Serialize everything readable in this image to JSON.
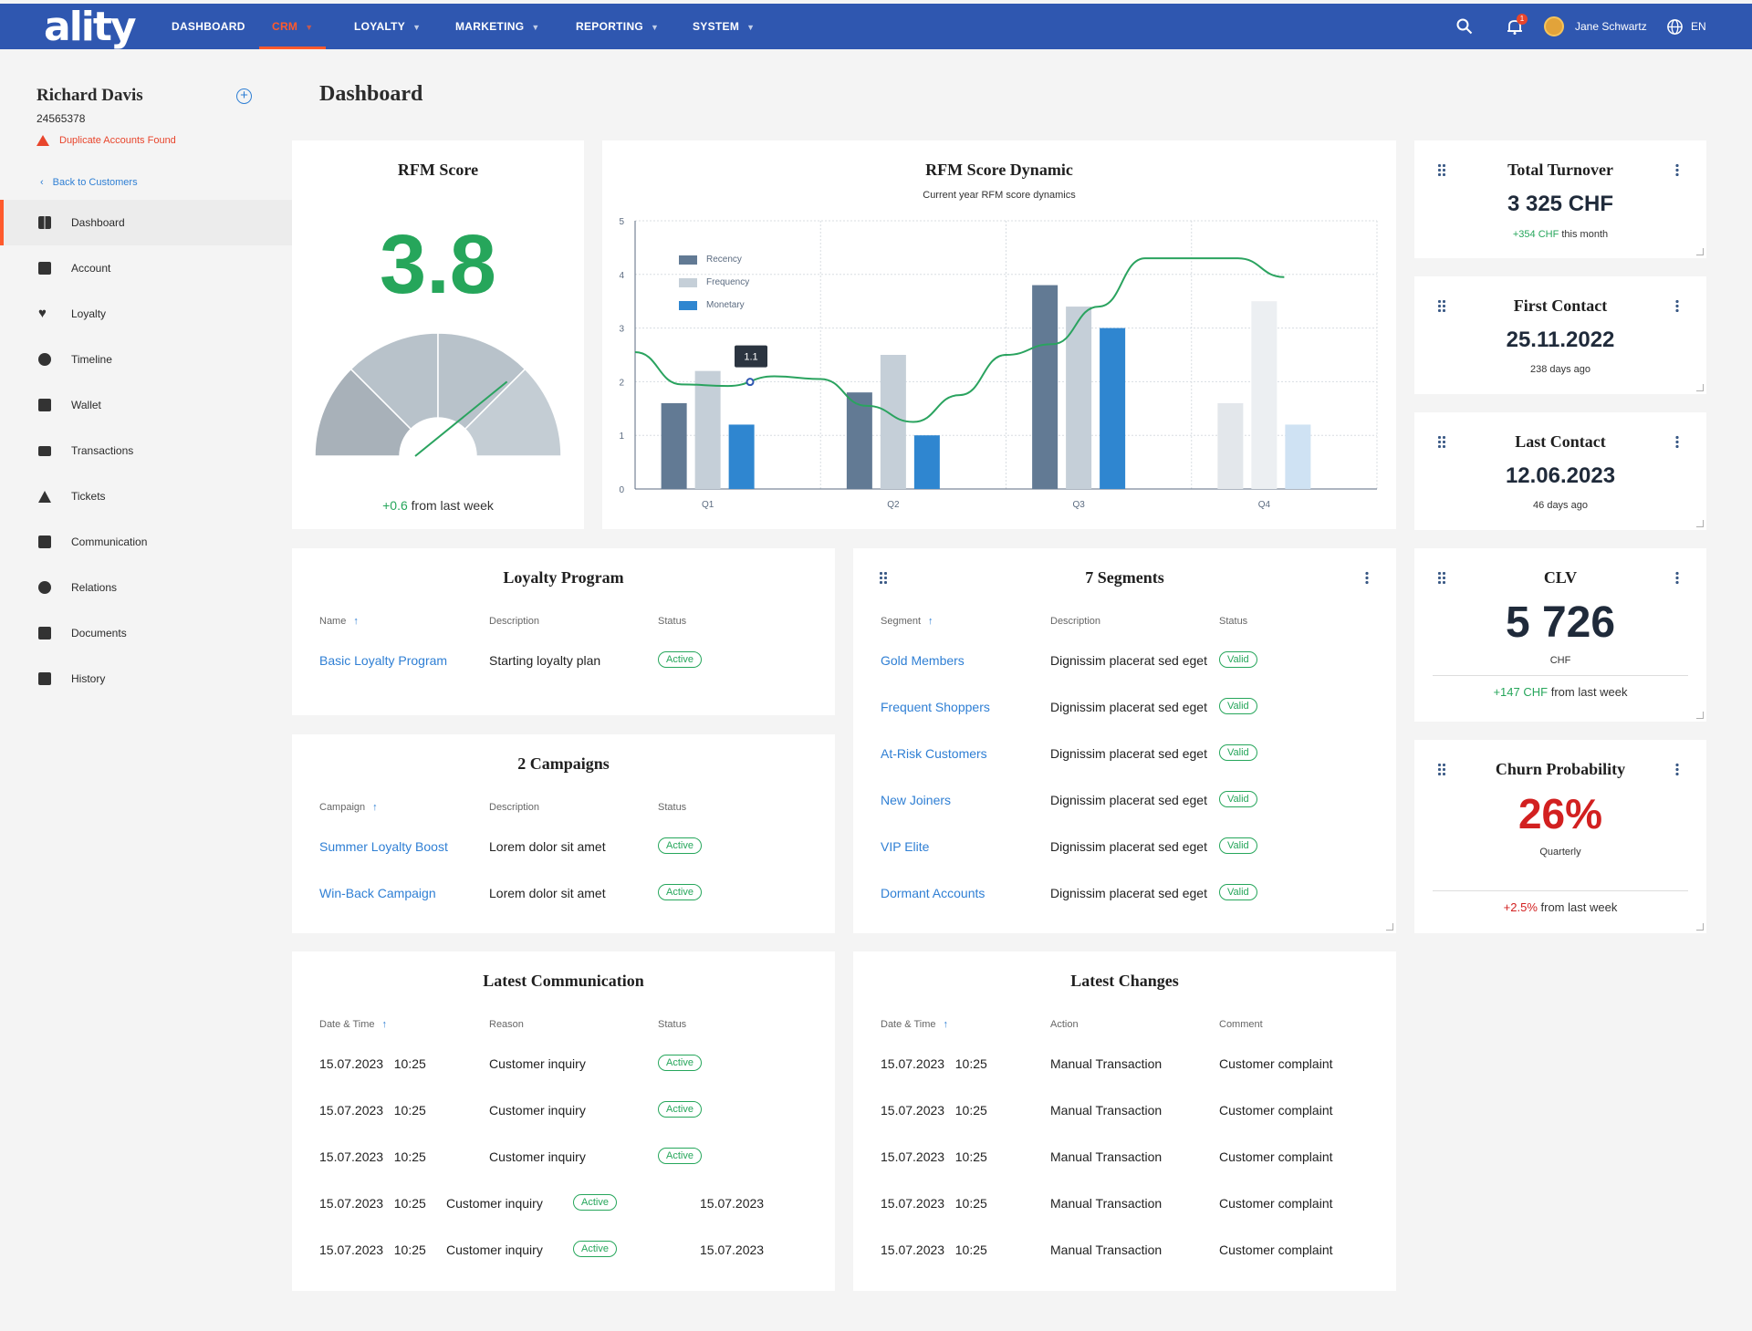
{
  "app": {
    "logo": "ality"
  },
  "nav": [
    {
      "label": "DASHBOARD",
      "has_menu": false,
      "active": false
    },
    {
      "label": "CRM",
      "has_menu": true,
      "active": true
    },
    {
      "label": "LOYALTY",
      "has_menu": true,
      "active": false
    },
    {
      "label": "MARKETING",
      "has_menu": true,
      "active": false
    },
    {
      "label": "REPORTING",
      "has_menu": true,
      "active": false
    },
    {
      "label": "SYSTEM",
      "has_menu": true,
      "active": false
    }
  ],
  "topbar": {
    "notification_count": "1",
    "user_name": "Jane Schwartz",
    "language": "EN"
  },
  "customer": {
    "name": "Richard Davis",
    "id": "24565378",
    "warning": "Duplicate Accounts Found",
    "back_label": "Back to Customers"
  },
  "sidebar_menu": [
    {
      "label": "Dashboard",
      "icon": "dashboard-icon",
      "active": true
    },
    {
      "label": "Account",
      "icon": "account-icon",
      "active": false
    },
    {
      "label": "Loyalty",
      "icon": "heart-icon",
      "active": false
    },
    {
      "label": "Timeline",
      "icon": "timeline-icon",
      "active": false
    },
    {
      "label": "Wallet",
      "icon": "wallet-icon",
      "active": false
    },
    {
      "label": "Transactions",
      "icon": "card-icon",
      "active": false
    },
    {
      "label": "Tickets",
      "icon": "ticket-icon",
      "active": false
    },
    {
      "label": "Communication",
      "icon": "chat-icon",
      "active": false
    },
    {
      "label": "Relations",
      "icon": "relations-icon",
      "active": false
    },
    {
      "label": "Documents",
      "icon": "document-icon",
      "active": false
    },
    {
      "label": "History",
      "icon": "history-icon",
      "active": false
    }
  ],
  "page": {
    "title": "Dashboard"
  },
  "rfm_score": {
    "title": "RFM Score",
    "value": "3.8",
    "gauge_fraction": 0.76,
    "delta": "+0.6",
    "delta_suffix": "from last week"
  },
  "rfm_dynamic": {
    "title": "RFM Score Dynamic",
    "subtitle": "Current year RFM score dynamics",
    "tooltip": "1.1"
  },
  "chart_data": {
    "type": "bar",
    "title": "RFM Score Dynamic",
    "subtitle": "Current year RFM score dynamics",
    "categories": [
      "Q1",
      "Q2",
      "Q3",
      "Q4"
    ],
    "ylim": [
      0,
      5
    ],
    "yticks": [
      0,
      1,
      2,
      3,
      4,
      5
    ],
    "grid": true,
    "legend_position": "top-left",
    "series": [
      {
        "name": "Recency",
        "color": "#627a94",
        "values": [
          1.6,
          1.8,
          3.8,
          null
        ]
      },
      {
        "name": "Frequency",
        "color": "#c5cfd8",
        "values": [
          2.2,
          2.5,
          3.4,
          1.6
        ]
      },
      {
        "name": "Monetary",
        "color": "#2f86d0",
        "values": [
          1.2,
          1.0,
          3.0,
          null
        ]
      }
    ],
    "q4_faded_values": [
      1.6,
      3.5,
      1.2
    ],
    "trend_line": {
      "color": "#2aa35f",
      "x": [
        0,
        0.25,
        0.5,
        0.75,
        1.0,
        1.25,
        1.5,
        1.75,
        2.0,
        2.25,
        2.5,
        2.75,
        3.0,
        3.25,
        3.5
      ],
      "values": [
        2.55,
        1.95,
        1.92,
        2.1,
        2.05,
        1.55,
        1.25,
        1.75,
        2.5,
        2.7,
        3.4,
        4.3,
        4.3,
        4.3,
        3.95
      ]
    },
    "tooltip": {
      "category": "Q1",
      "value": 1.1
    }
  },
  "total_turnover": {
    "title": "Total Turnover",
    "value": "3 325 CHF",
    "delta": "+354 CHF",
    "delta_suffix": "this month"
  },
  "first_contact": {
    "title": "First Contact",
    "value": "25.11.2022",
    "sub": "238 days ago"
  },
  "last_contact": {
    "title": "Last Contact",
    "value": "12.06.2023",
    "sub": "46 days ago"
  },
  "clv": {
    "title": "CLV",
    "value": "5 726",
    "unit": "CHF",
    "delta": "+147 CHF",
    "delta_suffix": "from last week"
  },
  "churn": {
    "title": "Churn Probability",
    "value": "26%",
    "sub": "Quarterly",
    "delta": "+2.5%",
    "delta_suffix": "from last week"
  },
  "loyalty_program": {
    "title": "Loyalty Program",
    "columns": [
      "Name",
      "Description",
      "Status"
    ],
    "rows": [
      {
        "name": "Basic Loyalty Program",
        "description": "Starting loyalty plan",
        "status": "Active"
      }
    ]
  },
  "campaigns": {
    "title": "2 Campaigns",
    "columns": [
      "Campaign",
      "Description",
      "Status"
    ],
    "rows": [
      {
        "name": "Summer Loyalty Boost",
        "description": "Lorem dolor sit amet",
        "status": "Active"
      },
      {
        "name": "Win-Back Campaign",
        "description": "Lorem dolor sit amet",
        "status": "Active"
      }
    ]
  },
  "segments": {
    "title": "7 Segments",
    "columns": [
      "Segment",
      "Description",
      "Status"
    ],
    "rows": [
      {
        "name": "Gold Members",
        "description": "Dignissim placerat sed eget",
        "status": "Valid"
      },
      {
        "name": "Frequent Shoppers",
        "description": "Dignissim placerat sed eget",
        "status": "Valid"
      },
      {
        "name": "At-Risk Customers",
        "description": "Dignissim placerat sed eget",
        "status": "Valid"
      },
      {
        "name": "New Joiners",
        "description": "Dignissim placerat sed eget",
        "status": "Valid"
      },
      {
        "name": "VIP Elite",
        "description": "Dignissim placerat sed eget",
        "status": "Valid"
      },
      {
        "name": "Dormant Accounts",
        "description": "Dignissim placerat sed eget",
        "status": "Valid"
      }
    ]
  },
  "latest_communication": {
    "title": "Latest Communication",
    "columns": [
      "Date & Time",
      "Reason",
      "Status"
    ],
    "rows": [
      {
        "date": "15.07.2023",
        "time": "10:25",
        "reason": "Customer inquiry",
        "status": "Active",
        "extra": ""
      },
      {
        "date": "15.07.2023",
        "time": "10:25",
        "reason": "Customer inquiry",
        "status": "Active",
        "extra": ""
      },
      {
        "date": "15.07.2023",
        "time": "10:25",
        "reason": "Customer inquiry",
        "status": "Active",
        "extra": ""
      },
      {
        "date": "15.07.2023",
        "time": "10:25",
        "reason": "Customer inquiry",
        "status": "Active",
        "extra": "15.07.2023"
      },
      {
        "date": "15.07.2023",
        "time": "10:25",
        "reason": "Customer inquiry",
        "status": "Active",
        "extra": "15.07.2023"
      }
    ]
  },
  "latest_changes": {
    "title": "Latest Changes",
    "columns": [
      "Date & Time",
      "Action",
      "Comment"
    ],
    "rows": [
      {
        "date": "15.07.2023",
        "time": "10:25",
        "action": "Manual Transaction",
        "comment": "Customer complaint"
      },
      {
        "date": "15.07.2023",
        "time": "10:25",
        "action": "Manual Transaction",
        "comment": "Customer complaint"
      },
      {
        "date": "15.07.2023",
        "time": "10:25",
        "action": "Manual Transaction",
        "comment": "Customer complaint"
      },
      {
        "date": "15.07.2023",
        "time": "10:25",
        "action": "Manual Transaction",
        "comment": "Customer complaint"
      },
      {
        "date": "15.07.2023",
        "time": "10:25",
        "action": "Manual Transaction",
        "comment": "Customer complaint"
      }
    ]
  }
}
